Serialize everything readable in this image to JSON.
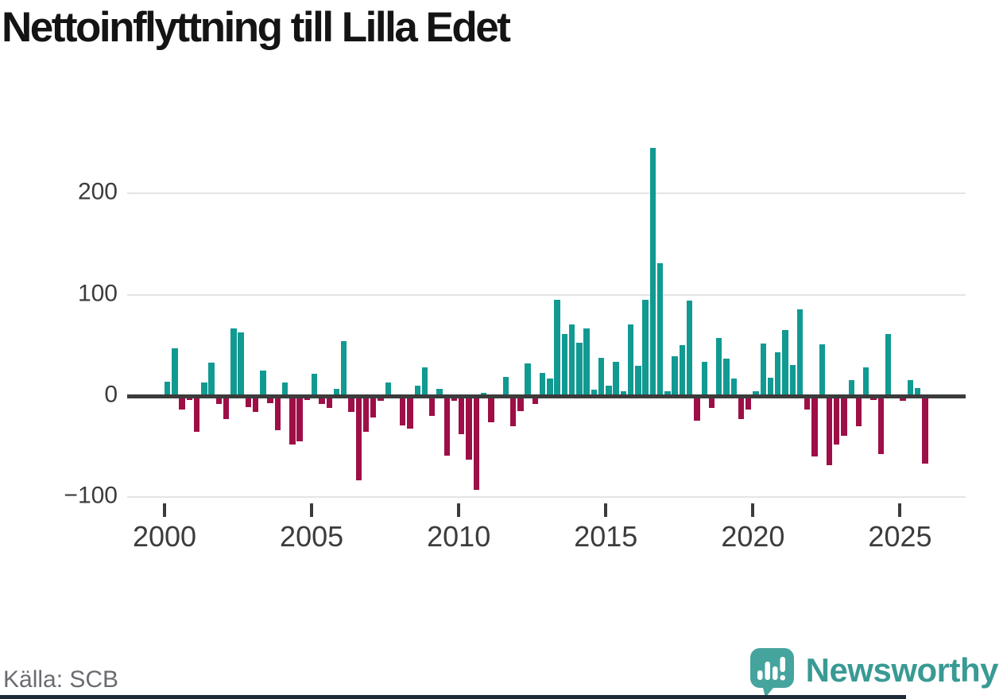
{
  "title": "Nettoinflyttning till Lilla Edet",
  "source": "Källa: SCB",
  "brand": {
    "name": "Newsworthy",
    "logo_color": "#46a49e",
    "text_color": "#399a94"
  },
  "colors": {
    "positive_bar": "#119a92",
    "negative_bar": "#9e0e47",
    "axis": "#3b3b3b",
    "gridline": "#e4e4e4",
    "title_text": "#141414",
    "tick_text": "#3c3c3c",
    "source_text": "#6b6b71",
    "bottom_accent": "#1f2a38"
  },
  "chart_data": {
    "type": "bar",
    "title": "Nettoinflyttning till Lilla Edet",
    "xlabel": "",
    "ylabel": "",
    "x_start_year": 2000,
    "bars_per_year": 4,
    "x_tick_years": [
      2000,
      2005,
      2010,
      2015,
      2020,
      2025
    ],
    "x_tick_labels": [
      "2000",
      "2005",
      "2010",
      "2015",
      "2020",
      "2025"
    ],
    "y_ticks": [
      200,
      100,
      0,
      -100
    ],
    "y_tick_labels": [
      "200",
      "100",
      "0",
      "−100"
    ],
    "ylim": [
      -100,
      250
    ],
    "grid": true,
    "legend": false,
    "values": [
      14,
      47,
      -13,
      -4,
      -35,
      13,
      33,
      -8,
      -23,
      67,
      63,
      -11,
      -16,
      25,
      -7,
      -34,
      13,
      -48,
      -45,
      -4,
      22,
      -8,
      -12,
      7,
      54,
      -16,
      -83,
      -35,
      -21,
      -5,
      13,
      0,
      -29,
      -32,
      10,
      28,
      -20,
      7,
      -59,
      -5,
      -38,
      -63,
      -93,
      3,
      -26,
      0,
      19,
      -30,
      -15,
      32,
      -8,
      23,
      17,
      95,
      61,
      71,
      53,
      67,
      6,
      38,
      10,
      34,
      5,
      71,
      30,
      95,
      245,
      131,
      5,
      39,
      50,
      94,
      -24,
      34,
      -12,
      57,
      37,
      17,
      -23,
      -13,
      5,
      52,
      18,
      43,
      65,
      31,
      86,
      -13,
      -60,
      51,
      -68,
      -48,
      -39,
      16,
      -30,
      28,
      -4,
      -57,
      61,
      0,
      -5,
      16,
      8,
      -67
    ]
  }
}
